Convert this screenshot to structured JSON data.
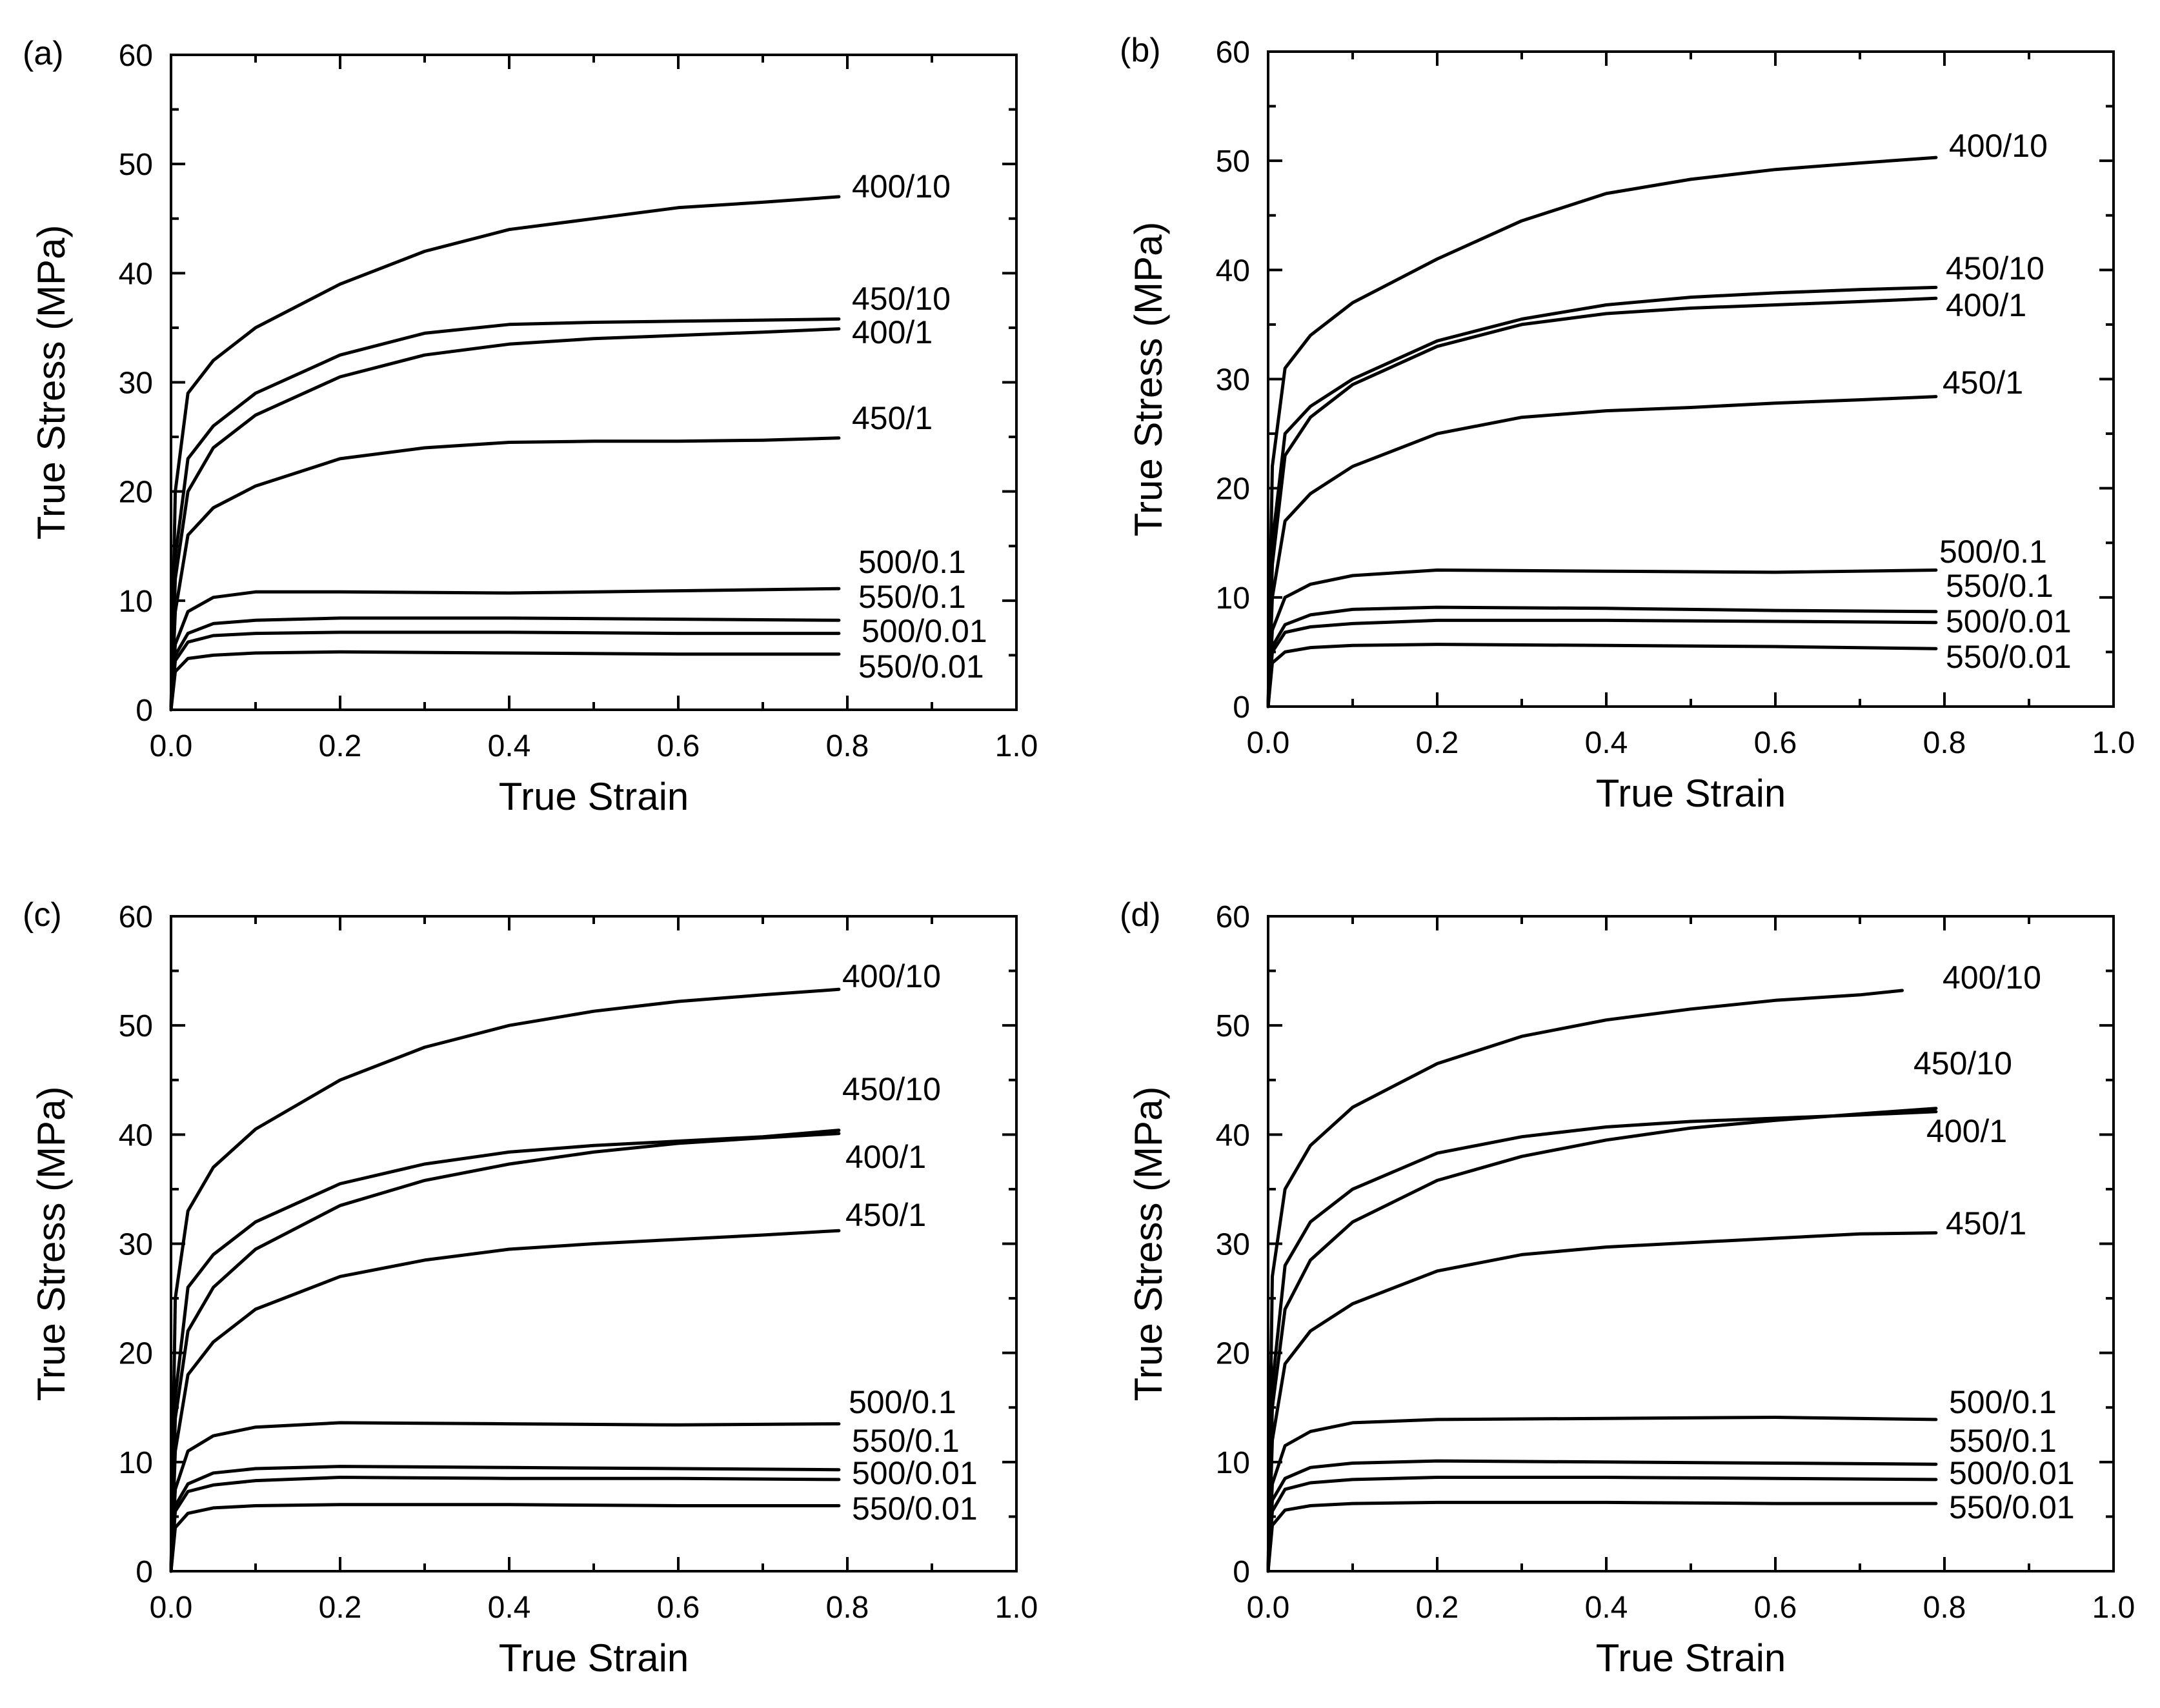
{
  "chart_data": [
    {
      "type": "line",
      "panel_label": "(a)",
      "xlabel": "True Strain",
      "ylabel": "True Stress (MPa)",
      "xlim": [
        0,
        1.0
      ],
      "ylim": [
        0,
        60
      ],
      "xticks": [
        "0.0",
        "0.2",
        "0.4",
        "0.6",
        "0.8",
        "1.0"
      ],
      "yticks": [
        "0",
        "10",
        "20",
        "30",
        "40",
        "50",
        "60"
      ],
      "series": [
        {
          "name": "400/10",
          "x": [
            0,
            0.005,
            0.02,
            0.05,
            0.1,
            0.2,
            0.3,
            0.4,
            0.5,
            0.6,
            0.7,
            0.79
          ],
          "y": [
            0,
            20,
            29,
            32,
            35,
            39,
            42,
            44,
            45,
            46,
            46.5,
            47
          ]
        },
        {
          "name": "450/10",
          "x": [
            0,
            0.005,
            0.02,
            0.05,
            0.1,
            0.2,
            0.3,
            0.4,
            0.5,
            0.6,
            0.7,
            0.79
          ],
          "y": [
            0,
            14,
            23,
            26,
            29,
            32.5,
            34.5,
            35.3,
            35.5,
            35.6,
            35.7,
            35.8
          ]
        },
        {
          "name": "400/1",
          "x": [
            0,
            0.005,
            0.02,
            0.05,
            0.1,
            0.2,
            0.3,
            0.4,
            0.5,
            0.6,
            0.7,
            0.79
          ],
          "y": [
            0,
            12,
            20,
            24,
            27,
            30.5,
            32.5,
            33.5,
            34,
            34.3,
            34.6,
            34.9
          ]
        },
        {
          "name": "450/1",
          "x": [
            0,
            0.005,
            0.02,
            0.05,
            0.1,
            0.2,
            0.3,
            0.4,
            0.5,
            0.6,
            0.7,
            0.79
          ],
          "y": [
            0,
            9,
            16,
            18.5,
            20.5,
            23,
            24,
            24.5,
            24.6,
            24.6,
            24.7,
            24.9
          ]
        },
        {
          "name": "500/0.1",
          "x": [
            0,
            0.005,
            0.02,
            0.05,
            0.1,
            0.2,
            0.4,
            0.6,
            0.79
          ],
          "y": [
            0,
            6,
            9,
            10.3,
            10.8,
            10.8,
            10.7,
            10.9,
            11.1
          ]
        },
        {
          "name": "550/0.1",
          "x": [
            0,
            0.005,
            0.02,
            0.05,
            0.1,
            0.2,
            0.4,
            0.6,
            0.79
          ],
          "y": [
            0,
            5,
            7,
            7.9,
            8.2,
            8.4,
            8.4,
            8.3,
            8.2
          ]
        },
        {
          "name": "500/0.01",
          "x": [
            0,
            0.005,
            0.02,
            0.05,
            0.1,
            0.2,
            0.4,
            0.6,
            0.79
          ],
          "y": [
            0,
            4.5,
            6.2,
            6.8,
            7.0,
            7.1,
            7.1,
            7.0,
            7.0
          ]
        },
        {
          "name": "550/0.01",
          "x": [
            0,
            0.005,
            0.02,
            0.05,
            0.1,
            0.2,
            0.4,
            0.6,
            0.79
          ],
          "y": [
            0,
            3.5,
            4.7,
            5.0,
            5.2,
            5.3,
            5.2,
            5.1,
            5.1
          ]
        }
      ]
    },
    {
      "type": "line",
      "panel_label": "(b)",
      "xlabel": "True Strain",
      "ylabel": "True Stress (MPa)",
      "xlim": [
        0,
        1.0
      ],
      "ylim": [
        0,
        60
      ],
      "xticks": [
        "0.0",
        "0.2",
        "0.4",
        "0.6",
        "0.8",
        "1.0"
      ],
      "yticks": [
        "0",
        "10",
        "20",
        "30",
        "40",
        "50",
        "60"
      ],
      "series": [
        {
          "name": "400/10",
          "x": [
            0,
            0.005,
            0.02,
            0.05,
            0.1,
            0.2,
            0.3,
            0.4,
            0.5,
            0.6,
            0.7,
            0.79
          ],
          "y": [
            0,
            22,
            31,
            34,
            37,
            41,
            44.5,
            47,
            48.3,
            49.2,
            49.8,
            50.3
          ]
        },
        {
          "name": "450/10",
          "x": [
            0,
            0.005,
            0.02,
            0.05,
            0.1,
            0.2,
            0.3,
            0.4,
            0.5,
            0.6,
            0.7,
            0.79
          ],
          "y": [
            0,
            15,
            25,
            27.5,
            30,
            33.5,
            35.5,
            36.8,
            37.5,
            37.9,
            38.2,
            38.4
          ]
        },
        {
          "name": "400/1",
          "x": [
            0,
            0.005,
            0.02,
            0.05,
            0.1,
            0.2,
            0.3,
            0.4,
            0.5,
            0.6,
            0.7,
            0.79
          ],
          "y": [
            0,
            13,
            23,
            26.5,
            29.5,
            33,
            35,
            36,
            36.5,
            36.8,
            37.1,
            37.4
          ]
        },
        {
          "name": "450/1",
          "x": [
            0,
            0.005,
            0.02,
            0.05,
            0.1,
            0.2,
            0.3,
            0.4,
            0.5,
            0.6,
            0.7,
            0.79
          ],
          "y": [
            0,
            10,
            17,
            19.5,
            22,
            25,
            26.5,
            27.1,
            27.4,
            27.8,
            28.1,
            28.4
          ]
        },
        {
          "name": "500/0.1",
          "x": [
            0,
            0.005,
            0.02,
            0.05,
            0.1,
            0.2,
            0.4,
            0.6,
            0.79
          ],
          "y": [
            0,
            7,
            10,
            11.2,
            12,
            12.5,
            12.4,
            12.3,
            12.5
          ]
        },
        {
          "name": "550/0.1",
          "x": [
            0,
            0.005,
            0.02,
            0.05,
            0.1,
            0.2,
            0.4,
            0.6,
            0.79
          ],
          "y": [
            0,
            5.5,
            7.5,
            8.4,
            8.9,
            9.1,
            9.0,
            8.8,
            8.7
          ]
        },
        {
          "name": "500/0.01",
          "x": [
            0,
            0.005,
            0.02,
            0.05,
            0.1,
            0.2,
            0.4,
            0.6,
            0.79
          ],
          "y": [
            0,
            5,
            6.8,
            7.3,
            7.6,
            7.9,
            7.9,
            7.8,
            7.7
          ]
        },
        {
          "name": "550/0.01",
          "x": [
            0,
            0.005,
            0.02,
            0.05,
            0.1,
            0.2,
            0.4,
            0.6,
            0.79
          ],
          "y": [
            0,
            4,
            5,
            5.4,
            5.6,
            5.7,
            5.6,
            5.5,
            5.3
          ]
        }
      ]
    },
    {
      "type": "line",
      "panel_label": "(c)",
      "xlabel": "True Strain",
      "ylabel": "True Stress (MPa)",
      "xlim": [
        0,
        1.0
      ],
      "ylim": [
        0,
        60
      ],
      "xticks": [
        "0.0",
        "0.2",
        "0.4",
        "0.6",
        "0.8",
        "1.0"
      ],
      "yticks": [
        "0",
        "10",
        "20",
        "30",
        "40",
        "50",
        "60"
      ],
      "series": [
        {
          "name": "400/10",
          "x": [
            0,
            0.005,
            0.02,
            0.05,
            0.1,
            0.2,
            0.3,
            0.4,
            0.5,
            0.6,
            0.7,
            0.79
          ],
          "y": [
            0,
            25,
            33,
            37,
            40.5,
            45,
            48,
            50,
            51.3,
            52.2,
            52.8,
            53.3
          ]
        },
        {
          "name": "450/10",
          "x": [
            0,
            0.005,
            0.02,
            0.05,
            0.1,
            0.2,
            0.3,
            0.4,
            0.5,
            0.6,
            0.7,
            0.79
          ],
          "y": [
            0,
            16,
            26,
            29,
            32,
            35.5,
            37.3,
            38.4,
            39,
            39.4,
            39.8,
            40.4
          ]
        },
        {
          "name": "400/1",
          "x": [
            0,
            0.005,
            0.02,
            0.05,
            0.1,
            0.2,
            0.3,
            0.4,
            0.5,
            0.6,
            0.7,
            0.79
          ],
          "y": [
            0,
            14,
            22,
            26,
            29.5,
            33.5,
            35.8,
            37.3,
            38.4,
            39.2,
            39.7,
            40.1
          ]
        },
        {
          "name": "450/1",
          "x": [
            0,
            0.005,
            0.02,
            0.05,
            0.1,
            0.2,
            0.3,
            0.4,
            0.5,
            0.6,
            0.7,
            0.79
          ],
          "y": [
            0,
            11,
            18,
            21,
            24,
            27,
            28.5,
            29.5,
            30,
            30.4,
            30.8,
            31.2
          ]
        },
        {
          "name": "500/0.1",
          "x": [
            0,
            0.005,
            0.02,
            0.05,
            0.1,
            0.2,
            0.4,
            0.6,
            0.79
          ],
          "y": [
            0,
            7.5,
            11,
            12.4,
            13.2,
            13.6,
            13.5,
            13.4,
            13.5
          ]
        },
        {
          "name": "550/0.1",
          "x": [
            0,
            0.005,
            0.02,
            0.05,
            0.1,
            0.2,
            0.4,
            0.6,
            0.79
          ],
          "y": [
            0,
            6,
            8,
            9,
            9.4,
            9.6,
            9.5,
            9.4,
            9.3
          ]
        },
        {
          "name": "500/0.01",
          "x": [
            0,
            0.005,
            0.02,
            0.05,
            0.1,
            0.2,
            0.4,
            0.6,
            0.79
          ],
          "y": [
            0,
            5.5,
            7.3,
            7.9,
            8.3,
            8.6,
            8.5,
            8.5,
            8.4
          ]
        },
        {
          "name": "550/0.01",
          "x": [
            0,
            0.005,
            0.02,
            0.05,
            0.1,
            0.2,
            0.4,
            0.6,
            0.79
          ],
          "y": [
            0,
            4,
            5.3,
            5.8,
            6.0,
            6.1,
            6.1,
            6.0,
            6.0
          ]
        }
      ]
    },
    {
      "type": "line",
      "panel_label": "(d)",
      "xlabel": "True Strain",
      "ylabel": "True Stress (MPa)",
      "xlim": [
        0,
        1.0
      ],
      "ylim": [
        0,
        60
      ],
      "xticks": [
        "0.0",
        "0.2",
        "0.4",
        "0.6",
        "0.8",
        "1.0"
      ],
      "yticks": [
        "0",
        "10",
        "20",
        "30",
        "40",
        "50",
        "60"
      ],
      "series": [
        {
          "name": "400/10",
          "x": [
            0,
            0.005,
            0.02,
            0.05,
            0.1,
            0.2,
            0.3,
            0.4,
            0.5,
            0.6,
            0.7,
            0.75
          ],
          "y": [
            0,
            27,
            35,
            39,
            42.5,
            46.5,
            49,
            50.5,
            51.5,
            52.3,
            52.8,
            53.2
          ]
        },
        {
          "name": "450/10",
          "x": [
            0,
            0.005,
            0.02,
            0.05,
            0.1,
            0.2,
            0.3,
            0.4,
            0.5,
            0.6,
            0.7,
            0.79
          ],
          "y": [
            0,
            17,
            28,
            32,
            35,
            38.3,
            39.8,
            40.7,
            41.2,
            41.5,
            41.8,
            42.1
          ]
        },
        {
          "name": "400/1",
          "x": [
            0,
            0.005,
            0.02,
            0.05,
            0.1,
            0.2,
            0.3,
            0.4,
            0.5,
            0.6,
            0.7,
            0.79
          ],
          "y": [
            0,
            15,
            24,
            28.5,
            32,
            35.8,
            38,
            39.5,
            40.6,
            41.3,
            41.9,
            42.4
          ]
        },
        {
          "name": "450/1",
          "x": [
            0,
            0.005,
            0.02,
            0.05,
            0.1,
            0.2,
            0.3,
            0.4,
            0.5,
            0.6,
            0.7,
            0.79
          ],
          "y": [
            0,
            12,
            19,
            22,
            24.5,
            27.5,
            29,
            29.7,
            30.1,
            30.5,
            30.9,
            31.0
          ]
        },
        {
          "name": "500/0.1",
          "x": [
            0,
            0.005,
            0.02,
            0.05,
            0.1,
            0.2,
            0.4,
            0.6,
            0.79
          ],
          "y": [
            0,
            8,
            11.5,
            12.8,
            13.6,
            13.9,
            14,
            14.1,
            13.9
          ]
        },
        {
          "name": "550/0.1",
          "x": [
            0,
            0.005,
            0.02,
            0.05,
            0.1,
            0.2,
            0.4,
            0.6,
            0.79
          ],
          "y": [
            0,
            6.5,
            8.5,
            9.5,
            9.9,
            10.1,
            10.0,
            9.9,
            9.8
          ]
        },
        {
          "name": "500/0.01",
          "x": [
            0,
            0.005,
            0.02,
            0.05,
            0.1,
            0.2,
            0.4,
            0.6,
            0.79
          ],
          "y": [
            0,
            5.5,
            7.5,
            8.1,
            8.4,
            8.6,
            8.6,
            8.5,
            8.4
          ]
        },
        {
          "name": "550/0.01",
          "x": [
            0,
            0.005,
            0.02,
            0.05,
            0.1,
            0.2,
            0.4,
            0.6,
            0.79
          ],
          "y": [
            0,
            4.2,
            5.6,
            6.0,
            6.2,
            6.3,
            6.3,
            6.2,
            6.2
          ]
        }
      ]
    }
  ]
}
